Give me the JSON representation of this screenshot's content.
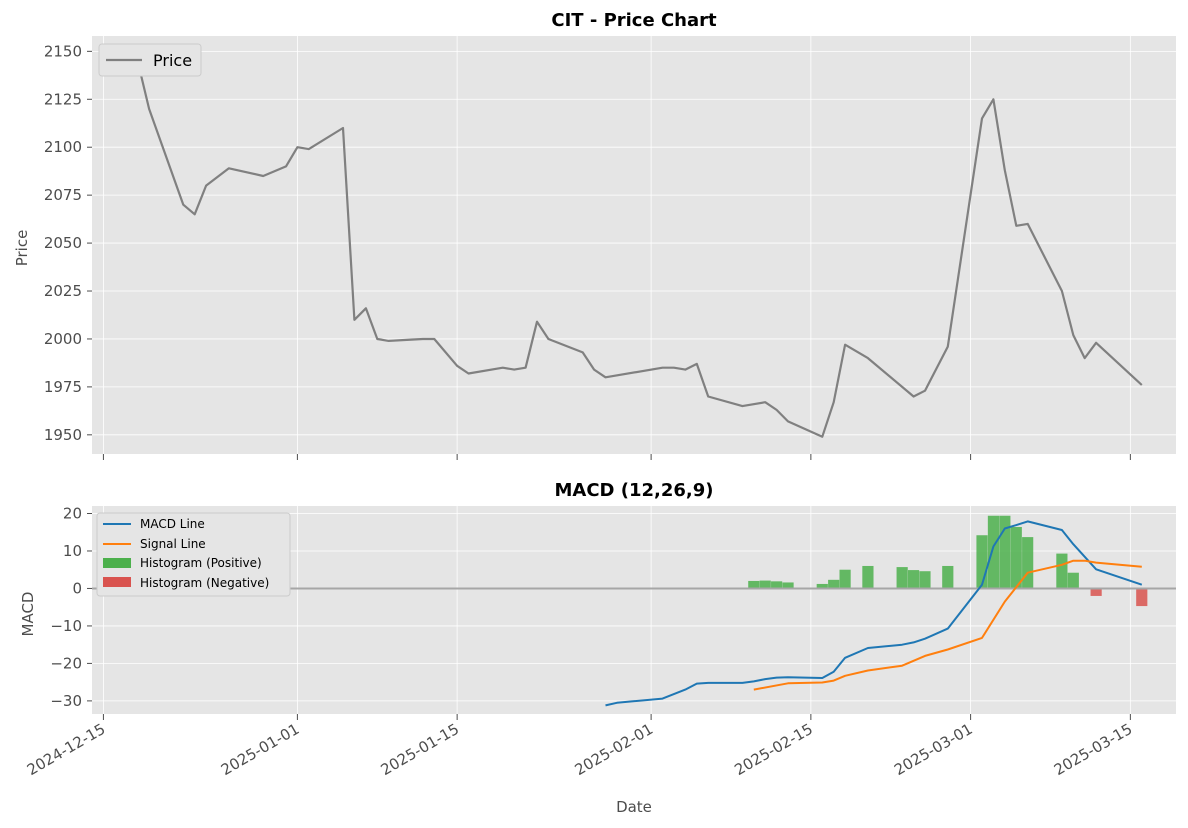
{
  "figure": {
    "background": "#ffffff",
    "axes_background": "#e5e5e5",
    "grid_color": "#ffffff",
    "xlabel": "Date",
    "x_range": [
      "2024-12-14",
      "2025-03-19"
    ],
    "x_ticks": [
      "2024-12-15",
      "2025-01-01",
      "2025-01-15",
      "2025-02-01",
      "2025-02-15",
      "2025-03-01",
      "2025-03-15"
    ]
  },
  "chart_data": [
    {
      "type": "line",
      "title": "CIT - Price Chart",
      "ylabel": "Price",
      "ylim": [
        1940,
        2158
      ],
      "y_ticks": [
        1950,
        1975,
        2000,
        2025,
        2050,
        2075,
        2100,
        2125,
        2150
      ],
      "grid": true,
      "legend": "top-left",
      "series": [
        {
          "name": "Price",
          "color": "#808080",
          "points": [
            [
              "2024-12-17",
              2145
            ],
            [
              "2024-12-18",
              2145
            ],
            [
              "2024-12-19",
              2120
            ],
            [
              "2024-12-22",
              2070
            ],
            [
              "2024-12-23",
              2065
            ],
            [
              "2024-12-24",
              2080
            ],
            [
              "2024-12-26",
              2089
            ],
            [
              "2024-12-29",
              2085
            ],
            [
              "2024-12-31",
              2090
            ],
            [
              "2025-01-01",
              2100
            ],
            [
              "2025-01-02",
              2099
            ],
            [
              "2025-01-05",
              2110
            ],
            [
              "2025-01-06",
              2010
            ],
            [
              "2025-01-07",
              2016
            ],
            [
              "2025-01-08",
              2000
            ],
            [
              "2025-01-09",
              1999
            ],
            [
              "2025-01-12",
              2000
            ],
            [
              "2025-01-13",
              2000
            ],
            [
              "2025-01-15",
              1986
            ],
            [
              "2025-01-16",
              1982
            ],
            [
              "2025-01-19",
              1985
            ],
            [
              "2025-01-20",
              1984
            ],
            [
              "2025-01-21",
              1985
            ],
            [
              "2025-01-22",
              2009
            ],
            [
              "2025-01-23",
              2000
            ],
            [
              "2025-01-26",
              1993
            ],
            [
              "2025-01-27",
              1984
            ],
            [
              "2025-01-28",
              1980
            ],
            [
              "2025-02-02",
              1985
            ],
            [
              "2025-02-03",
              1985
            ],
            [
              "2025-02-04",
              1984
            ],
            [
              "2025-02-05",
              1987
            ],
            [
              "2025-02-06",
              1970
            ],
            [
              "2025-02-09",
              1965
            ],
            [
              "2025-02-11",
              1967
            ],
            [
              "2025-02-12",
              1963
            ],
            [
              "2025-02-13",
              1957
            ],
            [
              "2025-02-16",
              1949
            ],
            [
              "2025-02-17",
              1967
            ],
            [
              "2025-02-18",
              1997
            ],
            [
              "2025-02-20",
              1990
            ],
            [
              "2025-02-24",
              1970
            ],
            [
              "2025-02-25",
              1973
            ],
            [
              "2025-02-27",
              1996
            ],
            [
              "2025-03-02",
              2115
            ],
            [
              "2025-03-03",
              2125
            ],
            [
              "2025-03-04",
              2088
            ],
            [
              "2025-03-05",
              2059
            ],
            [
              "2025-03-06",
              2060
            ],
            [
              "2025-03-09",
              2025
            ],
            [
              "2025-03-10",
              2002
            ],
            [
              "2025-03-11",
              1990
            ],
            [
              "2025-03-12",
              1998
            ],
            [
              "2025-03-16",
              1976
            ]
          ]
        }
      ]
    },
    {
      "type": "line",
      "title": "MACD (12,26,9)",
      "ylabel": "MACD",
      "ylim": [
        -33.5,
        22
      ],
      "y_ticks": [
        -30,
        -20,
        -10,
        0,
        10,
        20
      ],
      "zero_line": 0,
      "grid": true,
      "legend": "top-left",
      "series": [
        {
          "name": "MACD Line",
          "color": "#1f77b4",
          "points": [
            [
              "2025-01-28",
              -31.2
            ],
            [
              "2025-01-29",
              -30.5
            ],
            [
              "2025-02-02",
              -29.4
            ],
            [
              "2025-02-04",
              -27.0
            ],
            [
              "2025-02-05",
              -25.4
            ],
            [
              "2025-02-06",
              -25.2
            ],
            [
              "2025-02-09",
              -25.2
            ],
            [
              "2025-02-10",
              -24.8
            ],
            [
              "2025-02-11",
              -24.2
            ],
            [
              "2025-02-12",
              -23.8
            ],
            [
              "2025-02-13",
              -23.7
            ],
            [
              "2025-02-16",
              -23.9
            ],
            [
              "2025-02-17",
              -22.2
            ],
            [
              "2025-02-18",
              -18.5
            ],
            [
              "2025-02-20",
              -15.9
            ],
            [
              "2025-02-23",
              -15.0
            ],
            [
              "2025-02-24",
              -14.4
            ],
            [
              "2025-02-25",
              -13.4
            ],
            [
              "2025-02-27",
              -10.7
            ],
            [
              "2025-03-02",
              1.0
            ],
            [
              "2025-03-03",
              11.2
            ],
            [
              "2025-03-04",
              16.0
            ],
            [
              "2025-03-05",
              16.9
            ],
            [
              "2025-03-06",
              17.9
            ],
            [
              "2025-03-09",
              15.6
            ],
            [
              "2025-03-10",
              11.8
            ],
            [
              "2025-03-12",
              5.1
            ],
            [
              "2025-03-16",
              1.0
            ]
          ]
        },
        {
          "name": "Signal Line",
          "color": "#ff7f0e",
          "points": [
            [
              "2025-02-10",
              -27.0
            ],
            [
              "2025-02-13",
              -25.3
            ],
            [
              "2025-02-16",
              -25.1
            ],
            [
              "2025-02-17",
              -24.6
            ],
            [
              "2025-02-18",
              -23.3
            ],
            [
              "2025-02-20",
              -21.9
            ],
            [
              "2025-02-23",
              -20.6
            ],
            [
              "2025-02-25",
              -18.0
            ],
            [
              "2025-02-27",
              -16.3
            ],
            [
              "2025-03-02",
              -13.2
            ],
            [
              "2025-03-04",
              -3.5
            ],
            [
              "2025-03-06",
              4.2
            ],
            [
              "2025-03-09",
              6.3
            ],
            [
              "2025-03-10",
              7.4
            ],
            [
              "2025-03-11",
              7.4
            ],
            [
              "2025-03-12",
              6.9
            ],
            [
              "2025-03-16",
              5.8
            ]
          ]
        },
        {
          "name": "Histogram (Positive)",
          "color": "#4cb04c",
          "bars": [
            [
              "2025-02-10",
              2.0
            ],
            [
              "2025-02-11",
              2.1
            ],
            [
              "2025-02-12",
              1.9
            ],
            [
              "2025-02-13",
              1.6
            ],
            [
              "2025-02-16",
              1.2
            ],
            [
              "2025-02-17",
              2.3
            ],
            [
              "2025-02-18",
              5.0
            ],
            [
              "2025-02-20",
              6.0
            ],
            [
              "2025-02-23",
              5.7
            ],
            [
              "2025-02-24",
              4.9
            ],
            [
              "2025-02-25",
              4.6
            ],
            [
              "2025-02-27",
              6.0
            ],
            [
              "2025-03-02",
              14.2
            ],
            [
              "2025-03-03",
              19.4
            ],
            [
              "2025-03-04",
              19.4
            ],
            [
              "2025-03-05",
              16.4
            ],
            [
              "2025-03-06",
              13.7
            ],
            [
              "2025-03-09",
              9.3
            ],
            [
              "2025-03-10",
              4.2
            ]
          ]
        },
        {
          "name": "Histogram (Negative)",
          "color": "#d9534f",
          "bars": [
            [
              "2025-03-12",
              -2.0
            ],
            [
              "2025-03-16",
              -4.7
            ]
          ]
        }
      ]
    }
  ]
}
